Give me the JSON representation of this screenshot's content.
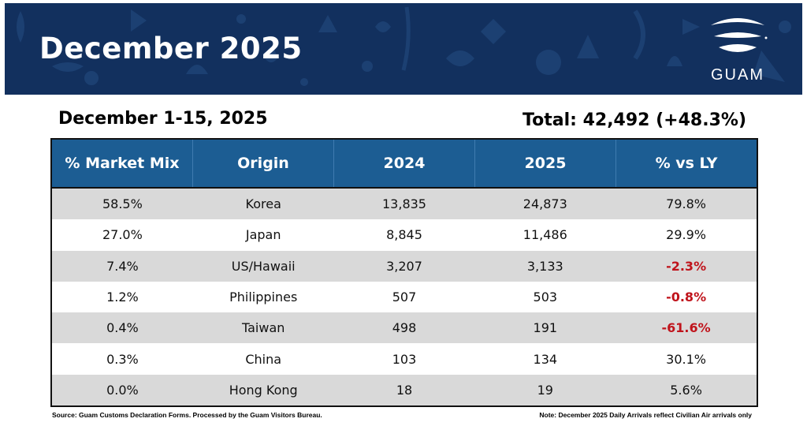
{
  "banner": {
    "title": "December 2025",
    "logo_text": "GUAM",
    "background_color": "#12305e",
    "logo_icon": "guam-wave-logo-icon"
  },
  "summary": {
    "period": "December 1-15, 2025",
    "total": "Total: 42,492 (+48.3%)"
  },
  "table": {
    "header_color": "#1c5d93",
    "negative_color": "#c0141c",
    "headers": [
      "% Market Mix",
      "Origin",
      "2024",
      "2025",
      "% vs LY"
    ],
    "rows": [
      {
        "mix": "58.5%",
        "origin": "Korea",
        "y2024": "13,835",
        "y2025": "24,873",
        "vs_ly": "79.8%",
        "negative": false
      },
      {
        "mix": "27.0%",
        "origin": "Japan",
        "y2024": "8,845",
        "y2025": "11,486",
        "vs_ly": "29.9%",
        "negative": false
      },
      {
        "mix": "7.4%",
        "origin": "US/Hawaii",
        "y2024": "3,207",
        "y2025": "3,133",
        "vs_ly": "-2.3%",
        "negative": true
      },
      {
        "mix": "1.2%",
        "origin": "Philippines",
        "y2024": "507",
        "y2025": "503",
        "vs_ly": "-0.8%",
        "negative": true
      },
      {
        "mix": "0.4%",
        "origin": "Taiwan",
        "y2024": "498",
        "y2025": "191",
        "vs_ly": "-61.6%",
        "negative": true
      },
      {
        "mix": "0.3%",
        "origin": "China",
        "y2024": "103",
        "y2025": "134",
        "vs_ly": "30.1%",
        "negative": false
      },
      {
        "mix": "0.0%",
        "origin": "Hong Kong",
        "y2024": "18",
        "y2025": "19",
        "vs_ly": "5.6%",
        "negative": false
      }
    ]
  },
  "footer": {
    "source": "Source: Guam Customs Declaration Forms. Processed by the Guam Visitors Bureau.",
    "note": "Note: December 2025 Daily Arrivals reflect Civilian Air arrivals only"
  }
}
